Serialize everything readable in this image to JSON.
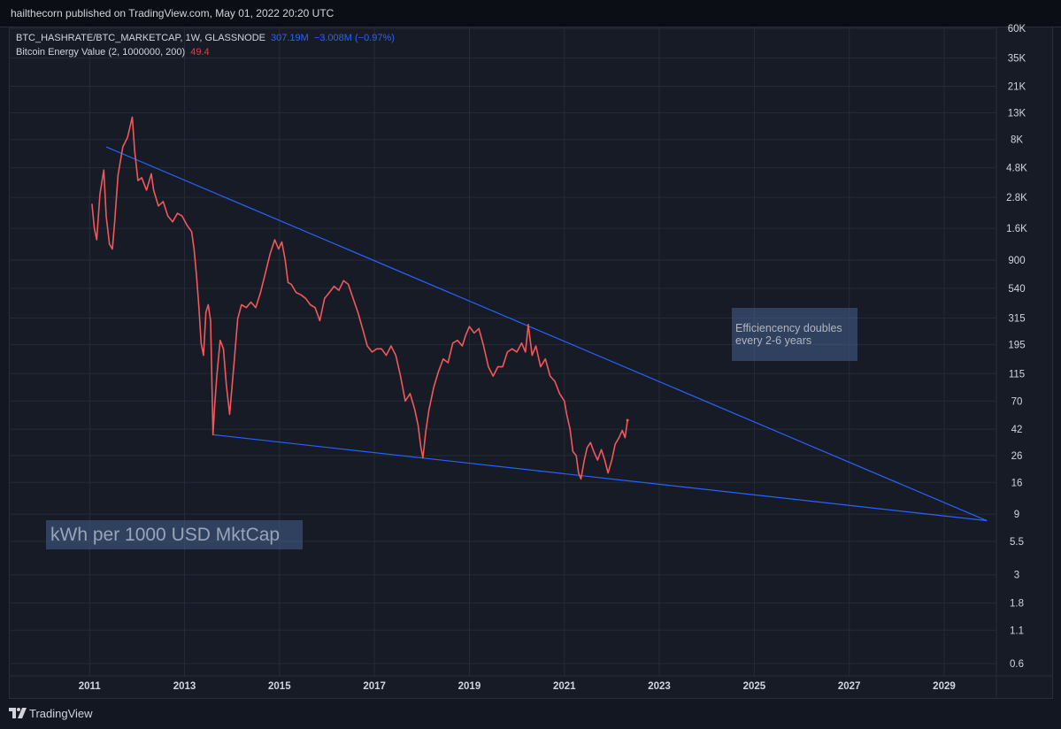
{
  "header": {
    "published_text": "hailthecorn published on TradingView.com, May 01, 2022 20:20 UTC"
  },
  "legend": {
    "line1_name": "BTC_HASHRATE/BTC_MARKETCAP, 1W, GLASSNODE",
    "line1_value": "307.19M",
    "line1_change": "−3.008M (−0.97%)",
    "line2_name": "Bitcoin Energy Value (2, 1000000, 200)",
    "line2_value": "49.4"
  },
  "annotations": {
    "efficiency_line1": "Efficiencency doubles",
    "efficiency_line2": "every 2-6 years",
    "unit_label": "kWh per 1000 USD MktCap"
  },
  "footer": {
    "brand": "TradingView"
  },
  "colors": {
    "background": "#131722",
    "series": "#f0585c",
    "trendline": "#2962ff",
    "grid": "#262b38"
  },
  "chart_data": {
    "type": "line",
    "y_scale": "log",
    "yticks": [
      "60K",
      "35K",
      "21K",
      "13K",
      "8K",
      "4.8K",
      "2.8K",
      "1.6K",
      "900",
      "540",
      "315",
      "195",
      "115",
      "70",
      "42",
      "26",
      "16",
      "9",
      "5.5",
      "3",
      "1.8",
      "1.1",
      "0.6"
    ],
    "ytick_values": [
      60000,
      35000,
      21000,
      13000,
      8000,
      4800,
      2800,
      1600,
      900,
      540,
      315,
      195,
      115,
      70,
      42,
      26,
      16,
      9,
      5.5,
      3,
      1.8,
      1.1,
      0.6
    ],
    "xticks": [
      "2011",
      "2013",
      "2015",
      "2017",
      "2019",
      "2021",
      "2023",
      "2025",
      "2027",
      "2029"
    ],
    "xtick_values": [
      2011,
      2013,
      2015,
      2017,
      2019,
      2021,
      2023,
      2025,
      2027,
      2029
    ],
    "xlim": [
      2009.3,
      2030.1
    ],
    "ylim": [
      0.48,
      62000
    ],
    "series": [
      {
        "values": [
          [
            2011.05,
            2500
          ],
          [
            2011.1,
            1600
          ],
          [
            2011.15,
            1300
          ],
          [
            2011.22,
            3000
          ],
          [
            2011.3,
            4600
          ],
          [
            2011.35,
            2000
          ],
          [
            2011.42,
            1200
          ],
          [
            2011.48,
            1100
          ],
          [
            2011.53,
            1800
          ],
          [
            2011.6,
            4200
          ],
          [
            2011.7,
            7000
          ],
          [
            2011.8,
            8300
          ],
          [
            2011.85,
            10000
          ],
          [
            2011.9,
            12000
          ],
          [
            2011.95,
            6500
          ],
          [
            2012.02,
            3800
          ],
          [
            2012.1,
            4000
          ],
          [
            2012.2,
            3200
          ],
          [
            2012.3,
            4300
          ],
          [
            2012.35,
            3200
          ],
          [
            2012.45,
            2400
          ],
          [
            2012.55,
            2600
          ],
          [
            2012.65,
            2000
          ],
          [
            2012.75,
            1800
          ],
          [
            2012.85,
            2100
          ],
          [
            2012.95,
            2000
          ],
          [
            2013.05,
            1700
          ],
          [
            2013.15,
            1500
          ],
          [
            2013.2,
            1100
          ],
          [
            2013.25,
            700
          ],
          [
            2013.3,
            400
          ],
          [
            2013.35,
            200
          ],
          [
            2013.4,
            160
          ],
          [
            2013.45,
            350
          ],
          [
            2013.5,
            400
          ],
          [
            2013.55,
            300
          ],
          [
            2013.6,
            38
          ],
          [
            2013.63,
            60
          ],
          [
            2013.68,
            110
          ],
          [
            2013.75,
            210
          ],
          [
            2013.82,
            180
          ],
          [
            2013.88,
            95
          ],
          [
            2013.95,
            55
          ],
          [
            2014.05,
            150
          ],
          [
            2014.12,
            310
          ],
          [
            2014.2,
            400
          ],
          [
            2014.3,
            380
          ],
          [
            2014.4,
            420
          ],
          [
            2014.5,
            380
          ],
          [
            2014.6,
            500
          ],
          [
            2014.7,
            700
          ],
          [
            2014.8,
            1000
          ],
          [
            2014.9,
            1300
          ],
          [
            2014.98,
            1100
          ],
          [
            2015.05,
            1250
          ],
          [
            2015.12,
            900
          ],
          [
            2015.18,
            600
          ],
          [
            2015.25,
            580
          ],
          [
            2015.35,
            500
          ],
          [
            2015.45,
            480
          ],
          [
            2015.55,
            450
          ],
          [
            2015.65,
            400
          ],
          [
            2015.75,
            380
          ],
          [
            2015.85,
            300
          ],
          [
            2015.95,
            450
          ],
          [
            2016.05,
            500
          ],
          [
            2016.15,
            560
          ],
          [
            2016.25,
            520
          ],
          [
            2016.35,
            620
          ],
          [
            2016.45,
            580
          ],
          [
            2016.55,
            450
          ],
          [
            2016.65,
            350
          ],
          [
            2016.75,
            260
          ],
          [
            2016.85,
            190
          ],
          [
            2016.95,
            170
          ],
          [
            2017.05,
            180
          ],
          [
            2017.15,
            180
          ],
          [
            2017.25,
            160
          ],
          [
            2017.35,
            190
          ],
          [
            2017.45,
            160
          ],
          [
            2017.55,
            110
          ],
          [
            2017.65,
            70
          ],
          [
            2017.75,
            80
          ],
          [
            2017.85,
            60
          ],
          [
            2017.92,
            45
          ],
          [
            2017.98,
            30
          ],
          [
            2018.02,
            25
          ],
          [
            2018.08,
            40
          ],
          [
            2018.15,
            60
          ],
          [
            2018.25,
            90
          ],
          [
            2018.35,
            120
          ],
          [
            2018.45,
            150
          ],
          [
            2018.55,
            140
          ],
          [
            2018.65,
            200
          ],
          [
            2018.75,
            210
          ],
          [
            2018.85,
            190
          ],
          [
            2018.92,
            230
          ],
          [
            2019.0,
            270
          ],
          [
            2019.1,
            240
          ],
          [
            2019.2,
            260
          ],
          [
            2019.3,
            190
          ],
          [
            2019.4,
            130
          ],
          [
            2019.5,
            110
          ],
          [
            2019.6,
            130
          ],
          [
            2019.7,
            130
          ],
          [
            2019.8,
            170
          ],
          [
            2019.9,
            180
          ],
          [
            2020.0,
            170
          ],
          [
            2020.1,
            200
          ],
          [
            2020.18,
            170
          ],
          [
            2020.24,
            280
          ],
          [
            2020.32,
            160
          ],
          [
            2020.4,
            190
          ],
          [
            2020.5,
            130
          ],
          [
            2020.6,
            150
          ],
          [
            2020.7,
            110
          ],
          [
            2020.8,
            100
          ],
          [
            2020.9,
            80
          ],
          [
            2021.0,
            70
          ],
          [
            2021.05,
            55
          ],
          [
            2021.12,
            42
          ],
          [
            2021.18,
            28
          ],
          [
            2021.25,
            26
          ],
          [
            2021.3,
            19
          ],
          [
            2021.35,
            17
          ],
          [
            2021.42,
            24
          ],
          [
            2021.48,
            30
          ],
          [
            2021.55,
            33
          ],
          [
            2021.62,
            28
          ],
          [
            2021.7,
            24
          ],
          [
            2021.78,
            29
          ],
          [
            2021.85,
            24
          ],
          [
            2021.92,
            19
          ],
          [
            2022.0,
            24
          ],
          [
            2022.07,
            32
          ],
          [
            2022.15,
            36
          ],
          [
            2022.22,
            41
          ],
          [
            2022.28,
            36
          ],
          [
            2022.33,
            49.4
          ]
        ]
      }
    ],
    "trendlines": [
      [
        [
          2011.35,
          7000
        ],
        [
          2029.9,
          8
        ]
      ],
      [
        [
          2013.6,
          38
        ],
        [
          2029.9,
          8
        ]
      ]
    ]
  }
}
